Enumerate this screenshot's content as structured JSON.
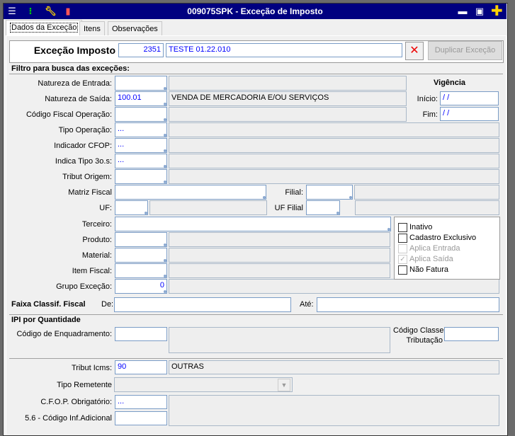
{
  "window": {
    "title": "009075SPK - Exceção de Imposto",
    "toolbar_icons": [
      "menu-icon",
      "traffic-light-icon",
      "wrench-icon",
      "book-icon"
    ],
    "controls": [
      "minimize-icon",
      "maximize-icon",
      "plus-icon"
    ]
  },
  "tabs": [
    {
      "label": "Dados da Exceção",
      "active": true
    },
    {
      "label": "Itens"
    },
    {
      "label": "Observações"
    }
  ],
  "header": {
    "label": "Exceção Imposto",
    "code": "2351",
    "description": "TESTE 01.22.010",
    "clear_icon": "✕",
    "duplicate_label": "Duplicar Exceção"
  },
  "filter": {
    "title": "Filtro para busca das exceções:",
    "natureza_entrada": {
      "label": "Natureza de Entrada:",
      "value": "",
      "desc": ""
    },
    "natureza_saida": {
      "label": "Natureza de Saída:",
      "value": "100.01",
      "desc": "VENDA DE MERCADORIA E/OU SERVIÇOS"
    },
    "cfo": {
      "label": "Código Fiscal Operação:",
      "value": "",
      "desc": ""
    },
    "tipo_operacao": {
      "label": "Tipo Operação:",
      "value": "...",
      "desc": ""
    },
    "indicador_cfop": {
      "label": "Indicador CFOP:",
      "value": "...",
      "desc": ""
    },
    "indica_tipo": {
      "label": "Indica Tipo 3o.s:",
      "value": "...",
      "desc": ""
    },
    "tribut_origem": {
      "label": "Tribut Origem:",
      "value": "",
      "desc": ""
    },
    "matriz_fiscal": {
      "label": "Matriz Fiscal",
      "value": ""
    },
    "filial": {
      "label": "Filial:",
      "value": "",
      "desc": ""
    },
    "uf": {
      "label": "UF:",
      "value": "",
      "desc": ""
    },
    "uf_filial": {
      "label": "UF Filial",
      "value": "",
      "desc": ""
    },
    "terceiro": {
      "label": "Terceiro:",
      "value": ""
    },
    "produto": {
      "label": "Produto:",
      "value": "",
      "desc": ""
    },
    "material": {
      "label": "Material:",
      "value": "",
      "desc": ""
    },
    "item_fiscal": {
      "label": "Item Fiscal:",
      "value": "",
      "desc": ""
    },
    "grupo_excecao": {
      "label": "Grupo Exceção:",
      "value": "0",
      "desc": ""
    },
    "vigencia": {
      "title": "Vigência",
      "inicio_label": "Início:",
      "inicio": " / /",
      "fim_label": "Fim:",
      "fim": " / /"
    },
    "checkboxes": [
      {
        "label": "Inativo",
        "checked": false,
        "enabled": true
      },
      {
        "label": "Cadastro Exclusivo",
        "checked": false,
        "enabled": true
      },
      {
        "label": "Aplica Entrada",
        "checked": false,
        "enabled": false
      },
      {
        "label": "Aplica Saída",
        "checked": true,
        "enabled": false
      },
      {
        "label": "Não Fatura",
        "checked": false,
        "enabled": true
      }
    ]
  },
  "faixa": {
    "title": "Faixa Classif. Fiscal",
    "de_label": "De:",
    "de": "",
    "ate_label": "Até:",
    "ate": ""
  },
  "ipi": {
    "title": "IPI por Quantidade",
    "enq_label": "Código de Enquadramento:",
    "enq": "",
    "enq_desc": "",
    "classe_label1": "Código Classe",
    "classe_label2": "Tributação",
    "classe": ""
  },
  "bottom": {
    "icms_label": "Tribut Icms:",
    "icms": "90",
    "icms_desc": "OUTRAS",
    "remetente_label": "Tipo Remetente",
    "remetente": "",
    "cfop_label": "C.F.O.P. Obrigatório:",
    "cfop": "...",
    "cfop_desc": "",
    "inf_label": "5.6 - Código Inf.Adicional",
    "inf": ""
  }
}
